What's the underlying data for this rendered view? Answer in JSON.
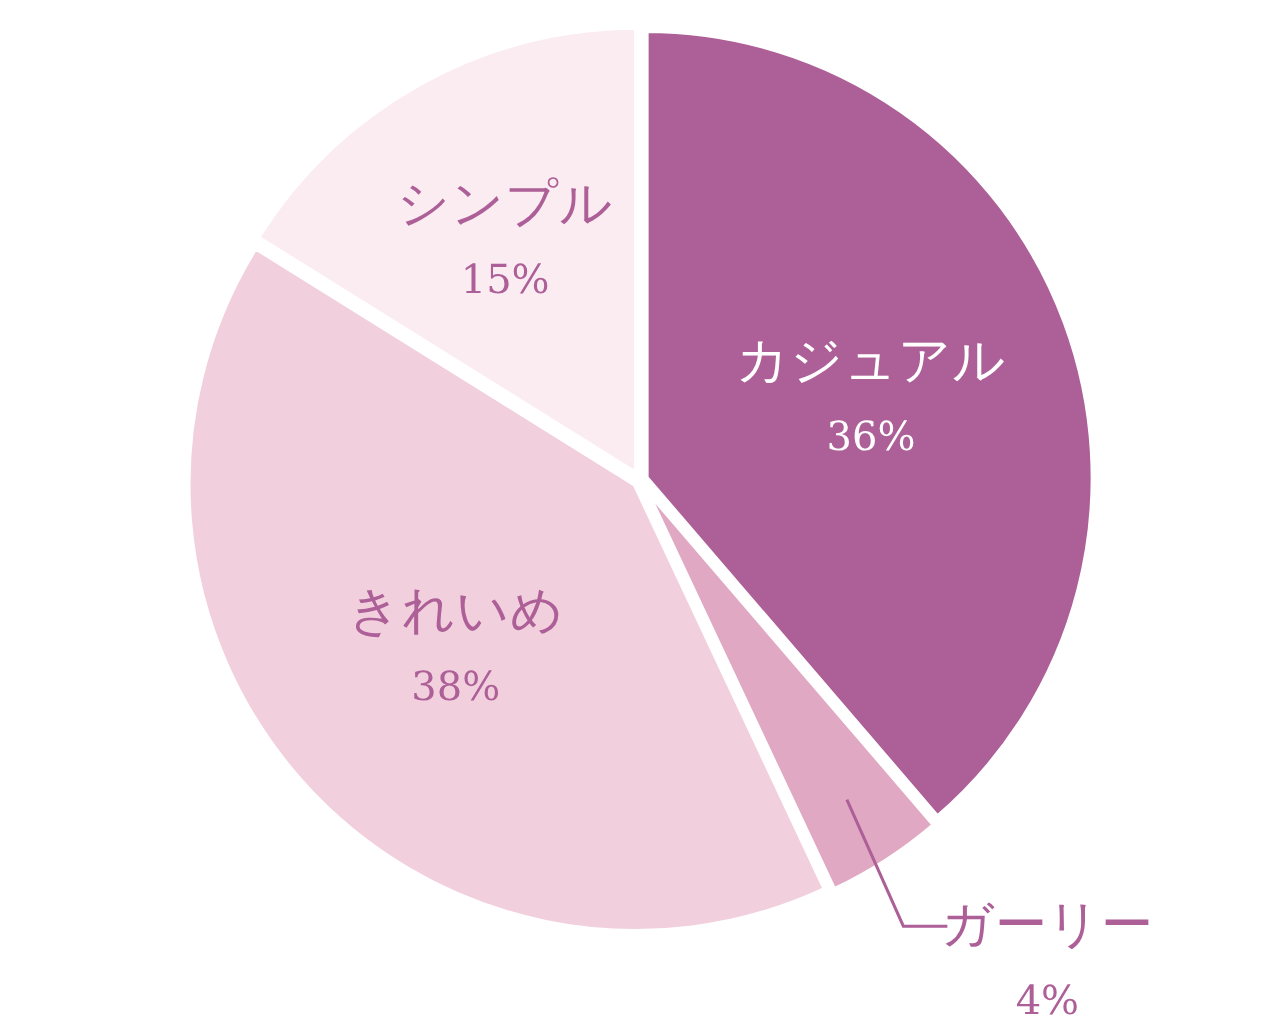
{
  "chart_data": {
    "type": "pie",
    "categories": [
      "カジュアル",
      "ガーリー",
      "きれいめ",
      "シンプル"
    ],
    "values": [
      36,
      4,
      38,
      15
    ],
    "value_labels": [
      "36%",
      "4%",
      "38%",
      "15%"
    ],
    "colors": [
      "#ad5f97",
      "#e0a8c2",
      "#f2cfdd",
      "#fbecf2"
    ]
  }
}
